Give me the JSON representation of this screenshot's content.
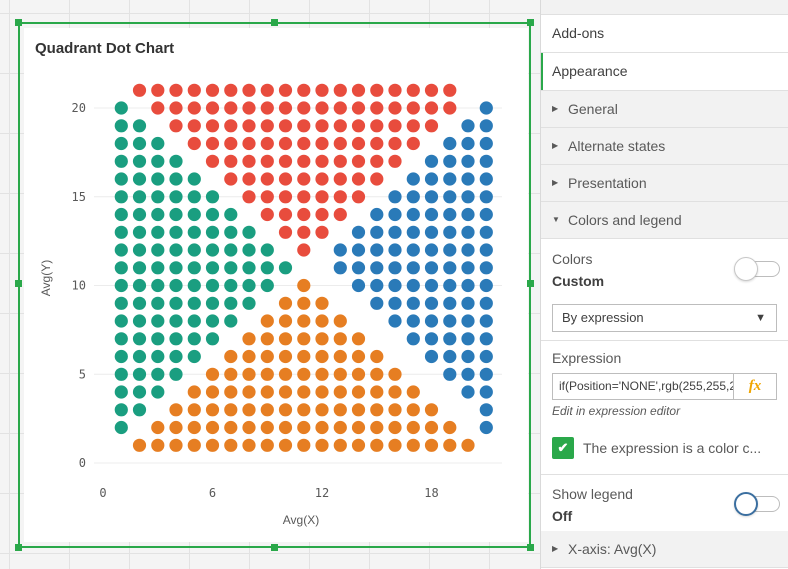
{
  "chart": {
    "title": "Quadrant Dot Chart",
    "xlabel": "Avg(X)",
    "ylabel": "Avg(Y)",
    "xticks": [
      "0",
      "6",
      "12",
      "18"
    ],
    "yticks": [
      "0",
      "5",
      "10",
      "15",
      "20"
    ]
  },
  "chart_data": {
    "type": "scatter",
    "title": "Quadrant Dot Chart",
    "xlabel": "Avg(X)",
    "ylabel": "Avg(Y)",
    "xlim": [
      0,
      22
    ],
    "ylim": [
      0,
      21
    ],
    "grid": true,
    "legend": "off",
    "colors": {
      "red": "#e84c3d",
      "blue": "#2a7ab8",
      "green": "#1a9e80",
      "orange": "#e67e22"
    },
    "series": [
      {
        "color": "red",
        "rows": [
          {
            "y": 21,
            "x": [
              2,
              19
            ]
          },
          {
            "y": 20,
            "x": [
              3,
              19
            ]
          },
          {
            "y": 19,
            "x": [
              4,
              18
            ]
          },
          {
            "y": 18,
            "x": [
              5,
              17
            ]
          },
          {
            "y": 17,
            "x": [
              6,
              16
            ]
          },
          {
            "y": 16,
            "x": [
              7,
              15
            ]
          },
          {
            "y": 15,
            "x": [
              8,
              14
            ]
          },
          {
            "y": 14,
            "x": [
              9,
              13
            ]
          },
          {
            "y": 13,
            "x": [
              10,
              12
            ]
          },
          {
            "y": 12,
            "x": [
              11,
              11
            ]
          }
        ]
      },
      {
        "color": "blue",
        "rows": [
          {
            "y": 20,
            "x": [
              21,
              21
            ]
          },
          {
            "y": 19,
            "x": [
              20,
              21
            ]
          },
          {
            "y": 18,
            "x": [
              19,
              21
            ]
          },
          {
            "y": 17,
            "x": [
              18,
              21
            ]
          },
          {
            "y": 16,
            "x": [
              17,
              21
            ]
          },
          {
            "y": 15,
            "x": [
              16,
              21
            ]
          },
          {
            "y": 14,
            "x": [
              15,
              21
            ]
          },
          {
            "y": 13,
            "x": [
              14,
              21
            ]
          },
          {
            "y": 12,
            "x": [
              13,
              21
            ]
          },
          {
            "y": 11,
            "x": [
              13,
              21
            ]
          },
          {
            "y": 10,
            "x": [
              14,
              21
            ]
          },
          {
            "y": 9,
            "x": [
              15,
              21
            ]
          },
          {
            "y": 8,
            "x": [
              16,
              21
            ]
          },
          {
            "y": 7,
            "x": [
              17,
              21
            ]
          },
          {
            "y": 6,
            "x": [
              18,
              21
            ]
          },
          {
            "y": 5,
            "x": [
              19,
              21
            ]
          },
          {
            "y": 4,
            "x": [
              20,
              21
            ]
          },
          {
            "y": 3,
            "x": [
              21,
              21
            ]
          },
          {
            "y": 2,
            "x": [
              21,
              21
            ]
          }
        ]
      },
      {
        "color": "green",
        "rows": [
          {
            "y": 20,
            "x": [
              1,
              1
            ]
          },
          {
            "y": 19,
            "x": [
              1,
              2
            ]
          },
          {
            "y": 18,
            "x": [
              1,
              3
            ]
          },
          {
            "y": 17,
            "x": [
              1,
              4
            ]
          },
          {
            "y": 16,
            "x": [
              1,
              5
            ]
          },
          {
            "y": 15,
            "x": [
              1,
              6
            ]
          },
          {
            "y": 14,
            "x": [
              1,
              7
            ]
          },
          {
            "y": 13,
            "x": [
              1,
              8
            ]
          },
          {
            "y": 12,
            "x": [
              1,
              9
            ]
          },
          {
            "y": 11,
            "x": [
              1,
              10
            ]
          },
          {
            "y": 10,
            "x": [
              1,
              9
            ]
          },
          {
            "y": 9,
            "x": [
              1,
              8
            ]
          },
          {
            "y": 8,
            "x": [
              1,
              7
            ]
          },
          {
            "y": 7,
            "x": [
              1,
              6
            ]
          },
          {
            "y": 6,
            "x": [
              1,
              5
            ]
          },
          {
            "y": 5,
            "x": [
              1,
              4
            ]
          },
          {
            "y": 4,
            "x": [
              1,
              3
            ]
          },
          {
            "y": 3,
            "x": [
              1,
              2
            ]
          },
          {
            "y": 2,
            "x": [
              1,
              1
            ]
          }
        ]
      },
      {
        "color": "orange",
        "rows": [
          {
            "y": 10,
            "x": [
              11,
              11
            ]
          },
          {
            "y": 9,
            "x": [
              10,
              12
            ]
          },
          {
            "y": 8,
            "x": [
              9,
              13
            ]
          },
          {
            "y": 7,
            "x": [
              8,
              14
            ]
          },
          {
            "y": 6,
            "x": [
              7,
              15
            ]
          },
          {
            "y": 5,
            "x": [
              6,
              16
            ]
          },
          {
            "y": 4,
            "x": [
              5,
              17
            ]
          },
          {
            "y": 3,
            "x": [
              4,
              18
            ]
          },
          {
            "y": 2,
            "x": [
              3,
              19
            ]
          },
          {
            "y": 1,
            "x": [
              2,
              20
            ]
          }
        ]
      }
    ]
  },
  "panel": {
    "tabs": [
      {
        "label": "Add-ons"
      },
      {
        "label": "Appearance"
      }
    ],
    "sections": [
      {
        "label": "General"
      },
      {
        "label": "Alternate states"
      },
      {
        "label": "Presentation"
      }
    ],
    "colors_legend": {
      "label": "Colors and legend",
      "colors_label": "Colors",
      "colors_value": "Custom",
      "mode": "By expression",
      "expression_label": "Expression",
      "expression_value": "if(Position='NONE',rgb(255,255,255),",
      "expression_hint": "Edit in expression editor",
      "fx_label": "fx",
      "is_color_code_label": "The expression is a color c...",
      "show_legend_label": "Show legend",
      "show_legend_value": "Off"
    },
    "xaxis_section": {
      "label": "X-axis: Avg(X)"
    }
  }
}
